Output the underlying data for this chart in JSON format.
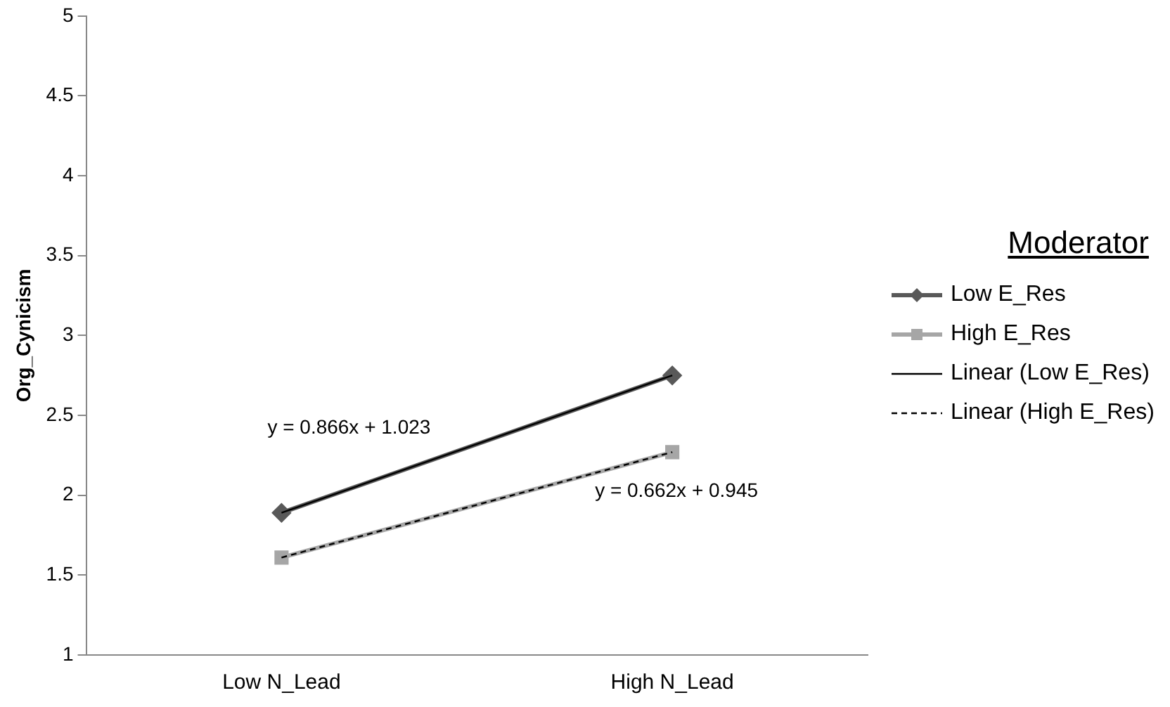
{
  "chart_data": {
    "type": "line",
    "ylabel": "Org_Cynicism",
    "legend_title": "Moderator",
    "legend": "right",
    "grid": false,
    "categories": [
      "Low N_Lead",
      "High N_Lead"
    ],
    "ylim": [
      1,
      5
    ],
    "yticks": [
      1,
      1.5,
      2,
      2.5,
      3,
      3.5,
      4,
      4.5,
      5
    ],
    "series": [
      {
        "name": "Low E_Res",
        "color": "#595959",
        "values": [
          1.89,
          2.75
        ],
        "marker": "diamond",
        "line_style": "solid"
      },
      {
        "name": "High E_Res",
        "color": "#a6a6a6",
        "values": [
          1.61,
          2.27
        ],
        "marker": "square",
        "line_style": "solid"
      },
      {
        "name": "Linear (Low E_Res)",
        "color": "#000000",
        "values": [
          1.89,
          2.75
        ],
        "marker": "none",
        "line_style": "solid"
      },
      {
        "name": "Linear (High E_Res)",
        "color": "#000000",
        "values": [
          1.61,
          2.27
        ],
        "marker": "none",
        "line_style": "dashed"
      }
    ],
    "annotations": [
      "y = 0.866x + 1.023",
      "y = 0.662x + 0.945"
    ]
  }
}
